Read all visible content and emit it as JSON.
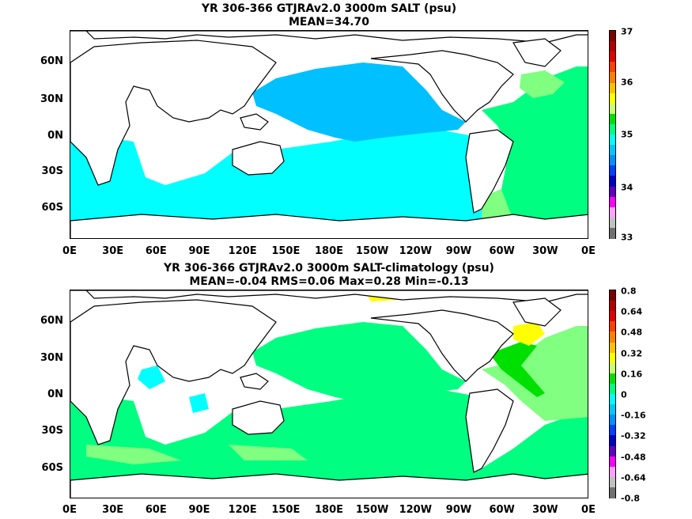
{
  "panels": [
    {
      "title_line1": "YR 306-366 GTJRAv2.0 3000m SALT (psu)",
      "title_line2": "MEAN=34.70",
      "colorbar": {
        "labels": [
          "37",
          "36",
          "35",
          "34",
          "33"
        ],
        "colors": [
          "#7a0000",
          "#b00000",
          "#e00000",
          "#ff4000",
          "#ff8000",
          "#ffc000",
          "#ffff00",
          "#c8ff70",
          "#00e000",
          "#00ff80",
          "#00ffff",
          "#00c8ff",
          "#0090ff",
          "#0040ff",
          "#0000c0",
          "#6000c0",
          "#ff00ff",
          "#ffa0ff",
          "#c0c0c0",
          "#707070"
        ]
      },
      "fill_colors": {
        "north_pacific": "#00c0ff",
        "southern": "#00ffff",
        "atlantic": "#00ff80",
        "atlantic_north": "#80ff80"
      }
    },
    {
      "title_line1": "YR 306-366 GTJRAv2.0 3000m SALT-climatology (psu)",
      "title_line2": "MEAN=-0.04   RMS=0.06   Max=0.28   Min=-0.13",
      "colorbar": {
        "labels": [
          "0.8",
          "0.64",
          "0.48",
          "0.32",
          "0.16",
          "0",
          "-0.16",
          "-0.32",
          "-0.48",
          "-0.64",
          "-0.8"
        ],
        "colors": [
          "#7a0000",
          "#b00000",
          "#e00000",
          "#ff4000",
          "#ff8000",
          "#ffc000",
          "#ffff00",
          "#c8ff70",
          "#00e000",
          "#00ff80",
          "#00ffff",
          "#00c8ff",
          "#0090ff",
          "#0040ff",
          "#0000c0",
          "#6000c0",
          "#ff00ff",
          "#ffa0ff",
          "#c0c0c0",
          "#707070"
        ]
      },
      "fill_colors": {
        "main": "#00ff80",
        "light": "#80ff80",
        "cyan": "#00ffff",
        "green": "#00e000",
        "yellow": "#ffff00"
      }
    }
  ],
  "lon_labels": [
    "0E",
    "30E",
    "60E",
    "90E",
    "120E",
    "150E",
    "180E",
    "150W",
    "120W",
    "90W",
    "60W",
    "30W",
    "0E"
  ],
  "lat_labels": [
    "60N",
    "30N",
    "0N",
    "30S",
    "60S"
  ]
}
